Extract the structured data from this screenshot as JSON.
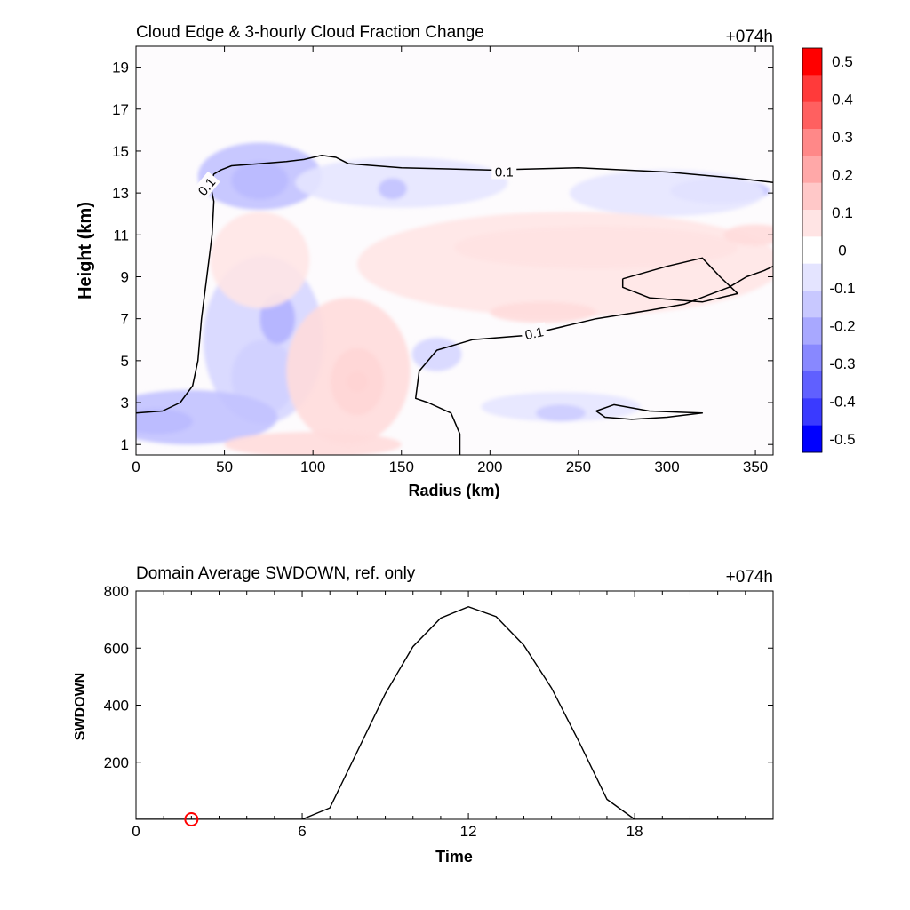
{
  "chart_data": [
    {
      "type": "heatmap",
      "title": "Cloud Edge & 3-hourly Cloud Fraction Change",
      "time_label": "+074h",
      "xlabel": "Radius (km)",
      "ylabel": "Height (km)",
      "xlim": [
        0,
        360
      ],
      "ylim": [
        0.5,
        20
      ],
      "xticks": [
        0,
        50,
        100,
        150,
        200,
        250,
        300,
        350
      ],
      "yticks": [
        1,
        3,
        5,
        7,
        9,
        11,
        13,
        15,
        17,
        19
      ],
      "colorbar": {
        "levels": [
          0.5,
          0.4,
          0.3,
          0.2,
          0.1,
          0,
          -0.1,
          -0.2,
          -0.3,
          -0.4,
          -0.5
        ],
        "labels": [
          "0.5",
          "0.4",
          "0.3",
          "0.2",
          "0.1",
          "0",
          "-0.1",
          "-0.2",
          "-0.3",
          "-0.4",
          "-0.5"
        ],
        "colors": [
          "#ff0000",
          "#ff3a3a",
          "#ff6060",
          "#ff8888",
          "#ffa8a8",
          "#ffc8c8",
          "#ffe4e4",
          "#ffffff",
          "#e4e4ff",
          "#c8c8ff",
          "#a8a8ff",
          "#8888ff",
          "#6060ff",
          "#3a3aff",
          "#0000ff"
        ]
      },
      "contour_level_label": "0.1",
      "features": [
        {
          "kind": "blob",
          "r": 70,
          "h": 13.6,
          "rx": 16,
          "ry": 0.9,
          "value": -0.28
        },
        {
          "kind": "blob",
          "r": 70,
          "h": 13.8,
          "rx": 35,
          "ry": 1.6,
          "value": -0.12
        },
        {
          "kind": "blob",
          "r": 150,
          "h": 13.5,
          "rx": 60,
          "ry": 1.2,
          "value": -0.05
        },
        {
          "kind": "blob",
          "r": 145,
          "h": 13.2,
          "rx": 8,
          "ry": 0.5,
          "value": -0.12
        },
        {
          "kind": "blob",
          "r": 330,
          "h": 13.1,
          "rx": 28,
          "ry": 0.6,
          "value": -0.12
        },
        {
          "kind": "blob",
          "r": 300,
          "h": 13.0,
          "rx": 55,
          "ry": 1.1,
          "value": -0.05
        },
        {
          "kind": "blob",
          "r": 72,
          "h": 4.2,
          "rx": 18,
          "ry": 1.8,
          "value": -0.2
        },
        {
          "kind": "blob",
          "r": 72,
          "h": 6.0,
          "rx": 34,
          "ry": 4.0,
          "value": -0.08
        },
        {
          "kind": "blob",
          "r": 80,
          "h": 7.0,
          "rx": 10,
          "ry": 1.2,
          "value": -0.15
        },
        {
          "kind": "blob",
          "r": 12,
          "h": 2.1,
          "rx": 20,
          "ry": 0.6,
          "value": -0.25
        },
        {
          "kind": "blob",
          "r": 30,
          "h": 2.3,
          "rx": 50,
          "ry": 1.3,
          "value": -0.12
        },
        {
          "kind": "blob",
          "r": 170,
          "h": 5.3,
          "rx": 14,
          "ry": 0.8,
          "value": -0.08
        },
        {
          "kind": "blob",
          "r": 240,
          "h": 2.8,
          "rx": 45,
          "ry": 0.7,
          "value": -0.05
        },
        {
          "kind": "blob",
          "r": 240,
          "h": 2.5,
          "rx": 14,
          "ry": 0.4,
          "value": -0.1
        },
        {
          "kind": "blob",
          "r": 125,
          "h": 4.0,
          "rx": 15,
          "ry": 1.6,
          "value": 0.16
        },
        {
          "kind": "blob",
          "r": 125,
          "h": 4.0,
          "rx": 6,
          "ry": 0.5,
          "value": 0.22
        },
        {
          "kind": "blob",
          "r": 120,
          "h": 4.5,
          "rx": 35,
          "ry": 3.5,
          "value": 0.07
        },
        {
          "kind": "blob",
          "r": 260,
          "h": 10.4,
          "rx": 80,
          "ry": 1.0,
          "value": 0.1
        },
        {
          "kind": "blob",
          "r": 245,
          "h": 9.6,
          "rx": 120,
          "ry": 2.5,
          "value": 0.05
        },
        {
          "kind": "blob",
          "r": 230,
          "h": 7.3,
          "rx": 30,
          "ry": 0.5,
          "value": 0.07
        },
        {
          "kind": "blob",
          "r": 70,
          "h": 9.8,
          "rx": 28,
          "ry": 2.3,
          "value": 0.05
        },
        {
          "kind": "blob",
          "r": 100,
          "h": 1.0,
          "rx": 50,
          "ry": 0.6,
          "value": 0.07
        },
        {
          "kind": "blob",
          "r": 350,
          "h": 11.0,
          "rx": 18,
          "ry": 0.5,
          "value": 0.07
        }
      ],
      "contours": [
        {
          "value": 0.1,
          "points": [
            [
              0,
              2.5
            ],
            [
              15,
              2.6
            ],
            [
              25,
              3.0
            ],
            [
              32,
              3.8
            ],
            [
              35,
              5.0
            ],
            [
              37,
              7.0
            ],
            [
              40,
              9.0
            ],
            [
              43,
              11.0
            ],
            [
              44,
              12.6
            ],
            [
              42,
              13.4
            ],
            [
              44,
              13.9
            ],
            [
              48,
              14.1
            ],
            [
              54,
              14.3
            ],
            [
              70,
              14.4
            ],
            [
              85,
              14.5
            ],
            [
              95,
              14.6
            ],
            [
              105,
              14.8
            ],
            [
              113,
              14.7
            ],
            [
              120,
              14.4
            ],
            [
              150,
              14.2
            ],
            [
              200,
              14.1
            ],
            [
              250,
              14.2
            ],
            [
              300,
              14.0
            ],
            [
              340,
              13.7
            ],
            [
              360,
              13.5
            ]
          ]
        },
        {
          "value": 0.1,
          "points": [
            [
              183,
              0.5
            ],
            [
              183,
              1.5
            ],
            [
              178,
              2.5
            ],
            [
              165,
              3.0
            ],
            [
              158,
              3.2
            ],
            [
              160,
              4.5
            ],
            [
              170,
              5.5
            ],
            [
              190,
              6.0
            ],
            [
              220,
              6.2
            ],
            [
              260,
              7.0
            ],
            [
              290,
              7.4
            ],
            [
              310,
              7.7
            ],
            [
              335,
              8.5
            ],
            [
              345,
              9.0
            ],
            [
              355,
              9.3
            ],
            [
              360,
              9.5
            ]
          ]
        },
        {
          "value": 0.1,
          "points": [
            [
              275,
              8.9
            ],
            [
              300,
              9.5
            ],
            [
              320,
              9.9
            ],
            [
              330,
              9.0
            ],
            [
              340,
              8.2
            ],
            [
              320,
              7.8
            ],
            [
              290,
              8.0
            ],
            [
              275,
              8.5
            ],
            [
              275,
              8.9
            ]
          ]
        },
        {
          "value": 0.1,
          "points": [
            [
              260,
              2.6
            ],
            [
              270,
              2.9
            ],
            [
              290,
              2.6
            ],
            [
              320,
              2.5
            ],
            [
              300,
              2.3
            ],
            [
              280,
              2.2
            ],
            [
              265,
              2.3
            ],
            [
              260,
              2.6
            ]
          ]
        }
      ],
      "contour_labels": [
        {
          "r": 40,
          "h": 13.3,
          "text": "0.1",
          "angle": -50
        },
        {
          "r": 208,
          "h": 14.0,
          "text": "0.1",
          "angle": 0
        },
        {
          "r": 225,
          "h": 6.3,
          "text": "0.1",
          "angle": -12
        }
      ]
    },
    {
      "type": "line",
      "title": "Domain Average SWDOWN, ref. only",
      "time_label": "+074h",
      "xlabel": "Time",
      "ylabel": "SWDOWN",
      "xlim": [
        0,
        23
      ],
      "ylim": [
        0,
        800
      ],
      "xticks": [
        0,
        6,
        12,
        18
      ],
      "yticks": [
        200,
        400,
        600,
        800
      ],
      "x": [
        0,
        1,
        2,
        3,
        4,
        5,
        6,
        7,
        8,
        9,
        10,
        11,
        12,
        13,
        14,
        15,
        16,
        17,
        18,
        19,
        20,
        21,
        22,
        23
      ],
      "values": [
        0,
        0,
        0,
        0,
        0,
        0,
        0,
        40,
        240,
        440,
        605,
        705,
        745,
        710,
        610,
        460,
        270,
        70,
        0,
        0,
        0,
        0,
        0,
        0
      ],
      "marker": {
        "x": 2,
        "y": 0,
        "color": "#ff0000"
      }
    }
  ]
}
